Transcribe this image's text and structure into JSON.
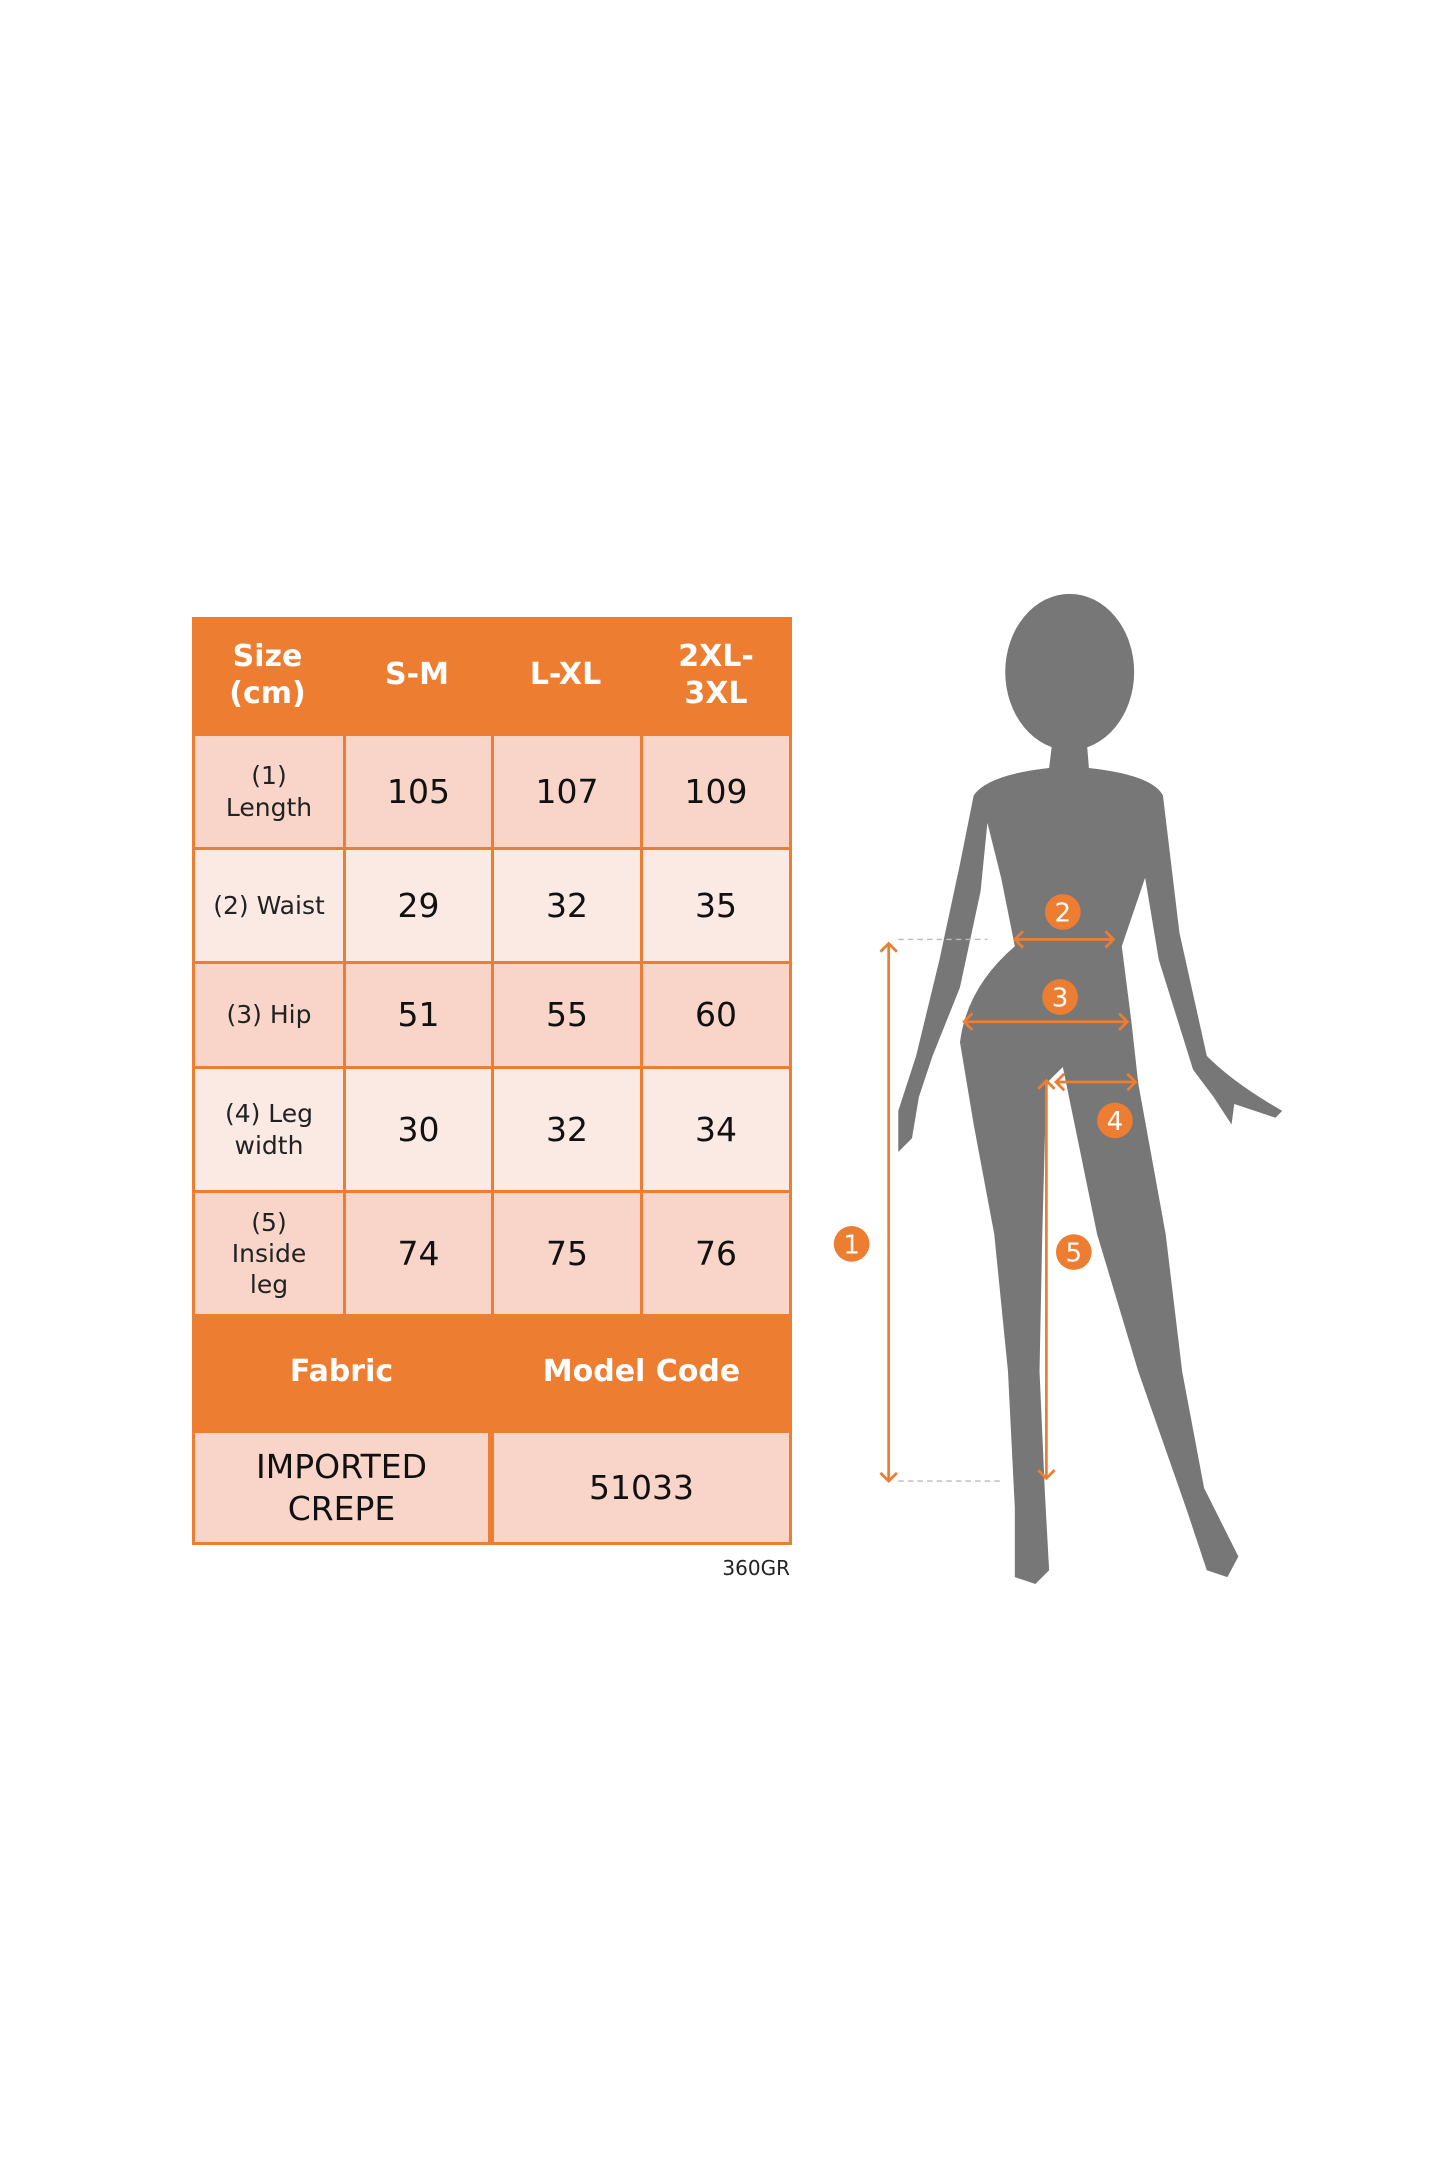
{
  "table": {
    "header": [
      "Size\n(cm)",
      "S-M",
      "L-XL",
      "2XL-\n3XL"
    ],
    "rows": [
      {
        "label": "(1)\nLength",
        "values": [
          "105",
          "107",
          "109"
        ]
      },
      {
        "label": "(2) Waist",
        "values": [
          "29",
          "32",
          "35"
        ]
      },
      {
        "label": "(3) Hip",
        "values": [
          "51",
          "55",
          "60"
        ]
      },
      {
        "label": "(4) Leg\nwidth",
        "values": [
          "30",
          "32",
          "34"
        ]
      },
      {
        "label": "(5)\nInside\nleg",
        "values": [
          "74",
          "75",
          "76"
        ]
      }
    ],
    "fabric_header": "Fabric",
    "model_code_header": "Model Code",
    "fabric_value": "IMPORTED\nCREPE",
    "model_code_value": "51033"
  },
  "weight_note": "360GR",
  "figure": {
    "markers": [
      "1",
      "2",
      "3",
      "4",
      "5"
    ],
    "accent_color": "#ed7d31",
    "silhouette_color": "#777777"
  }
}
